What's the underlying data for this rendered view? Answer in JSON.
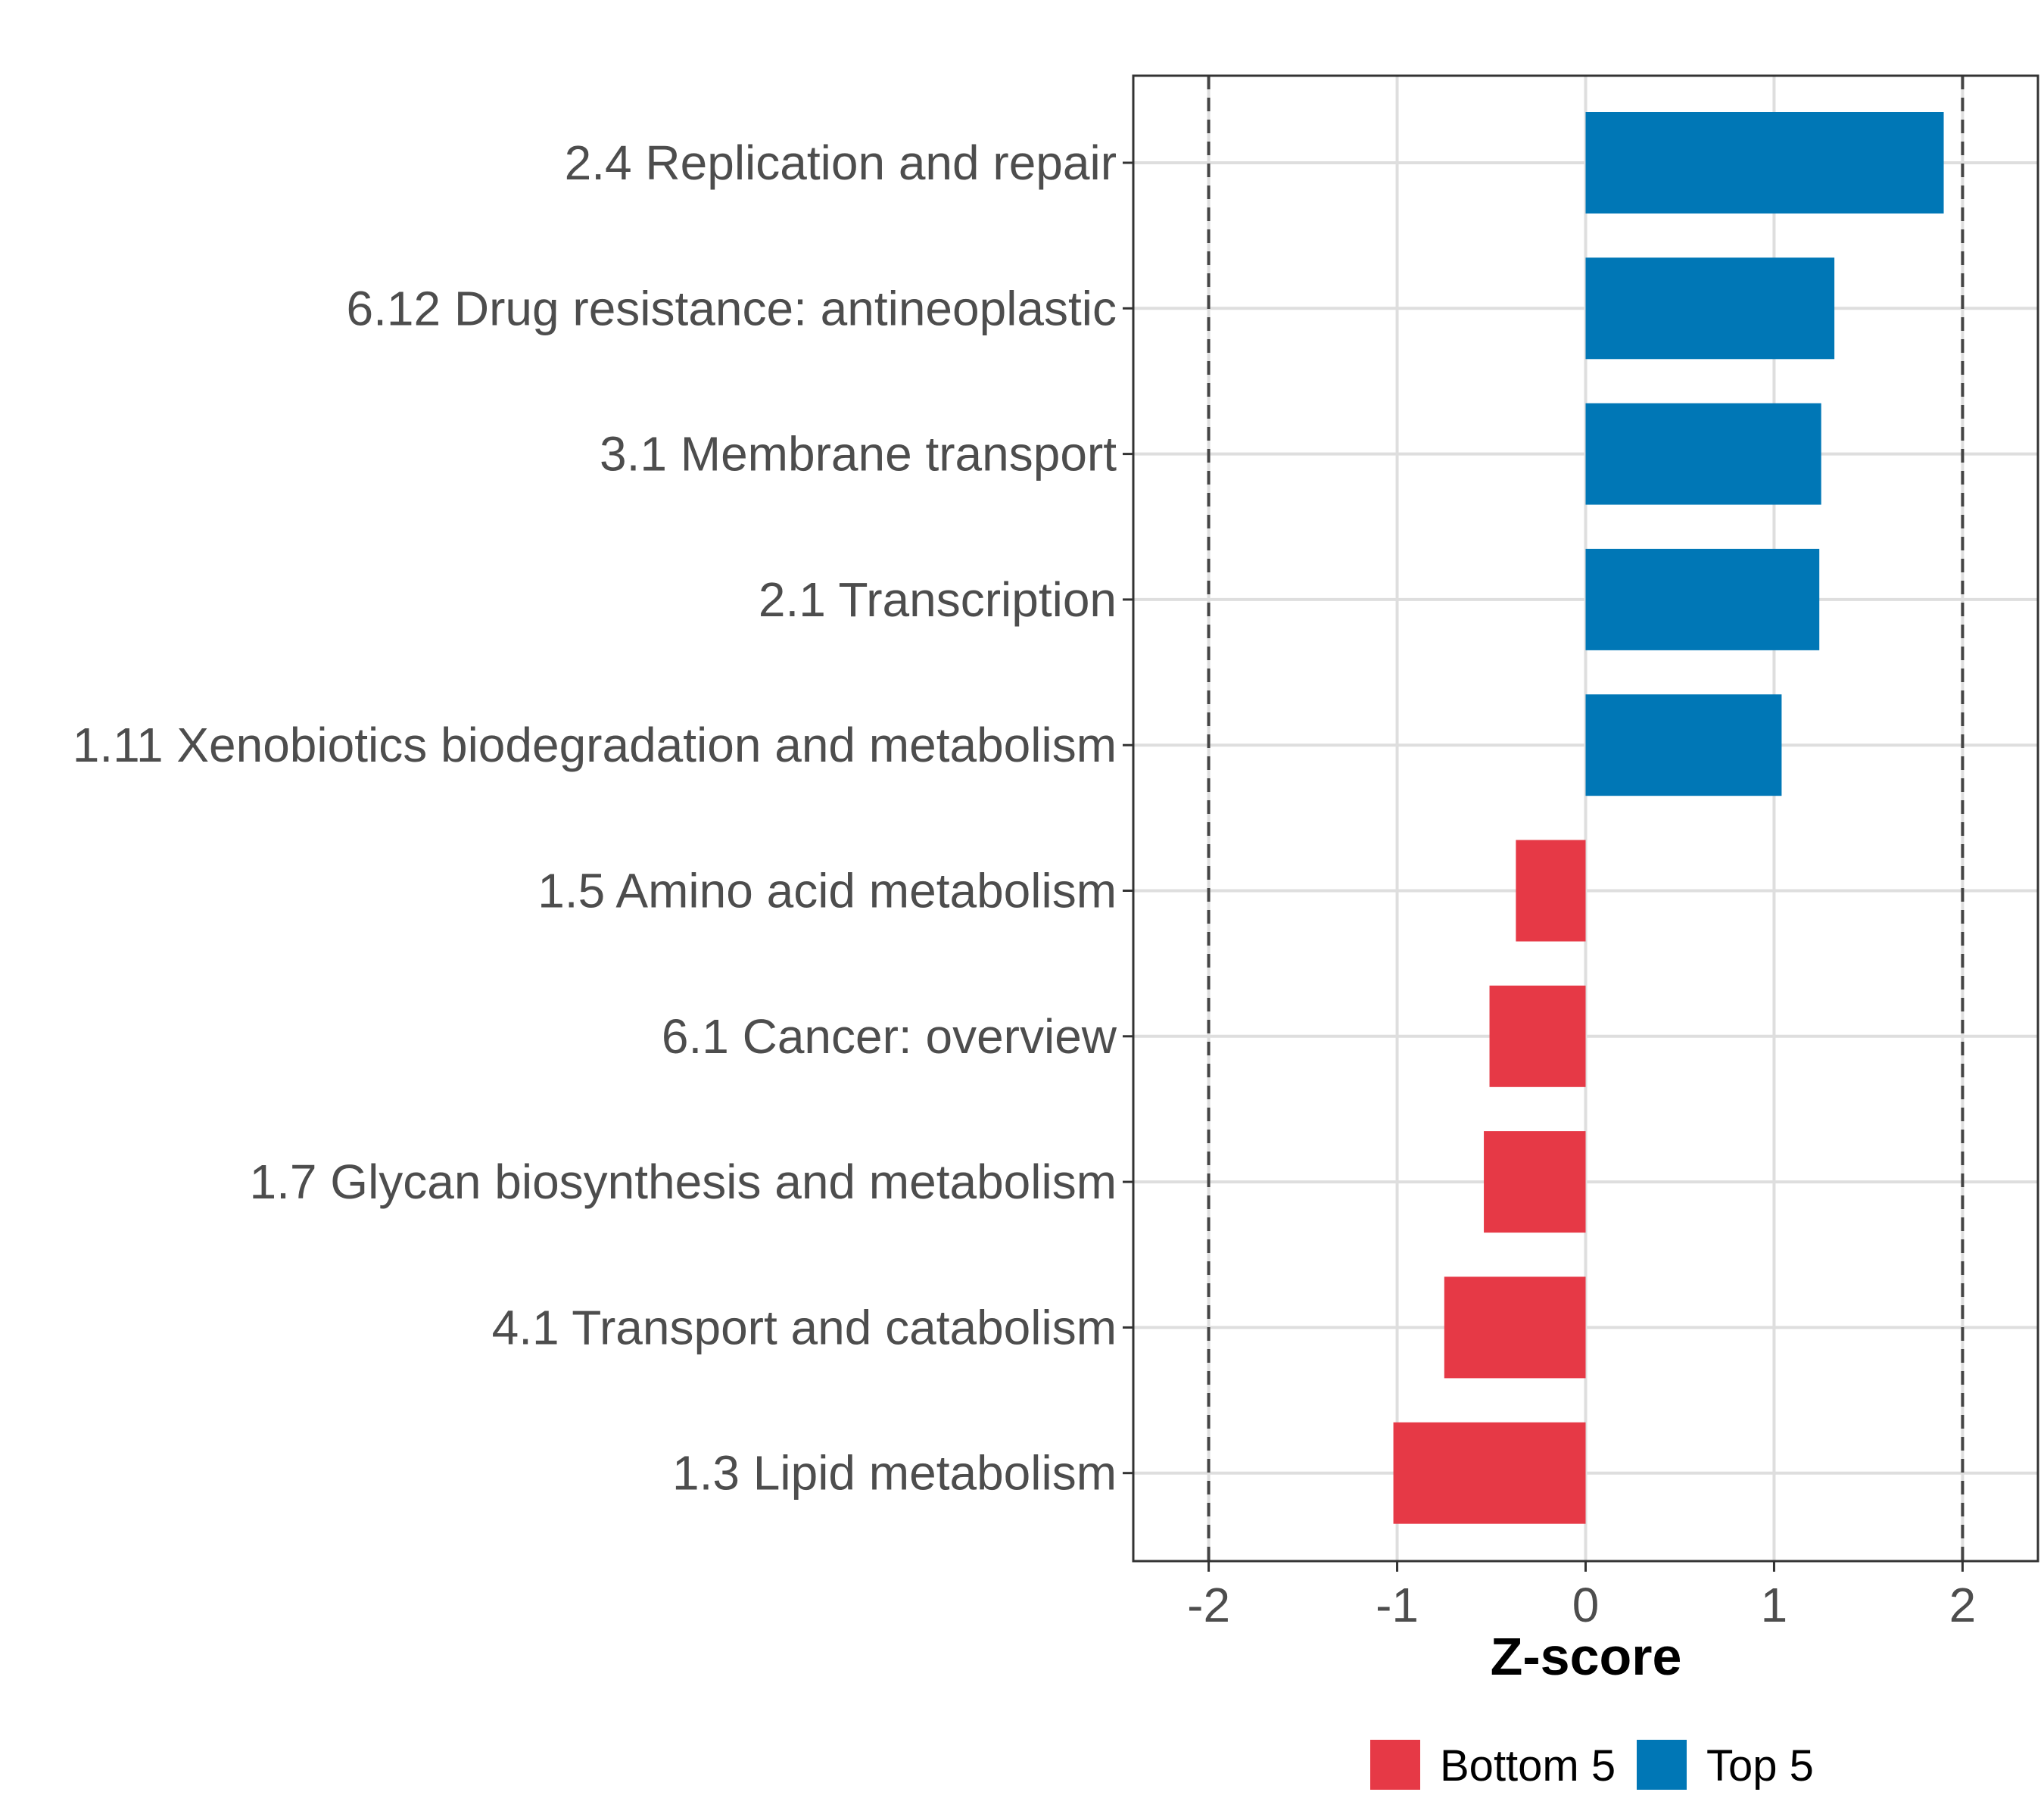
{
  "chart_data": {
    "type": "bar",
    "orientation": "horizontal",
    "xlabel": "Z-score",
    "ylabel": "",
    "xlim": [
      -2.4,
      2.4
    ],
    "xticks": [
      -2,
      -1,
      0,
      1,
      2
    ],
    "reference_lines": [
      -2,
      2
    ],
    "grid": true,
    "legend_position": "bottom",
    "categories": [
      "2.4 Replication and repair",
      "6.12 Drug resistance: antineoplastic",
      "3.1 Membrane transport",
      "2.1 Transcription",
      "1.11 Xenobiotics biodegradation and metabolism",
      "1.5 Amino acid metabolism",
      "6.1 Cancer: overview",
      "1.7 Glycan biosynthesis and metabolism",
      "4.1 Transport and catabolism",
      "1.3 Lipid metabolism"
    ],
    "values": [
      1.9,
      1.32,
      1.25,
      1.24,
      1.04,
      -0.37,
      -0.51,
      -0.54,
      -0.75,
      -1.02
    ],
    "groups": [
      "Top 5",
      "Top 5",
      "Top 5",
      "Top 5",
      "Top 5",
      "Bottom 5",
      "Bottom 5",
      "Bottom 5",
      "Bottom 5",
      "Bottom 5"
    ],
    "legend": [
      {
        "name": "Bottom 5",
        "color": "#e63946"
      },
      {
        "name": "Top 5",
        "color": "#0077b6"
      }
    ]
  },
  "colors": {
    "grid": "#dedede",
    "panel_border": "#333333",
    "ref_line": "#444444"
  }
}
